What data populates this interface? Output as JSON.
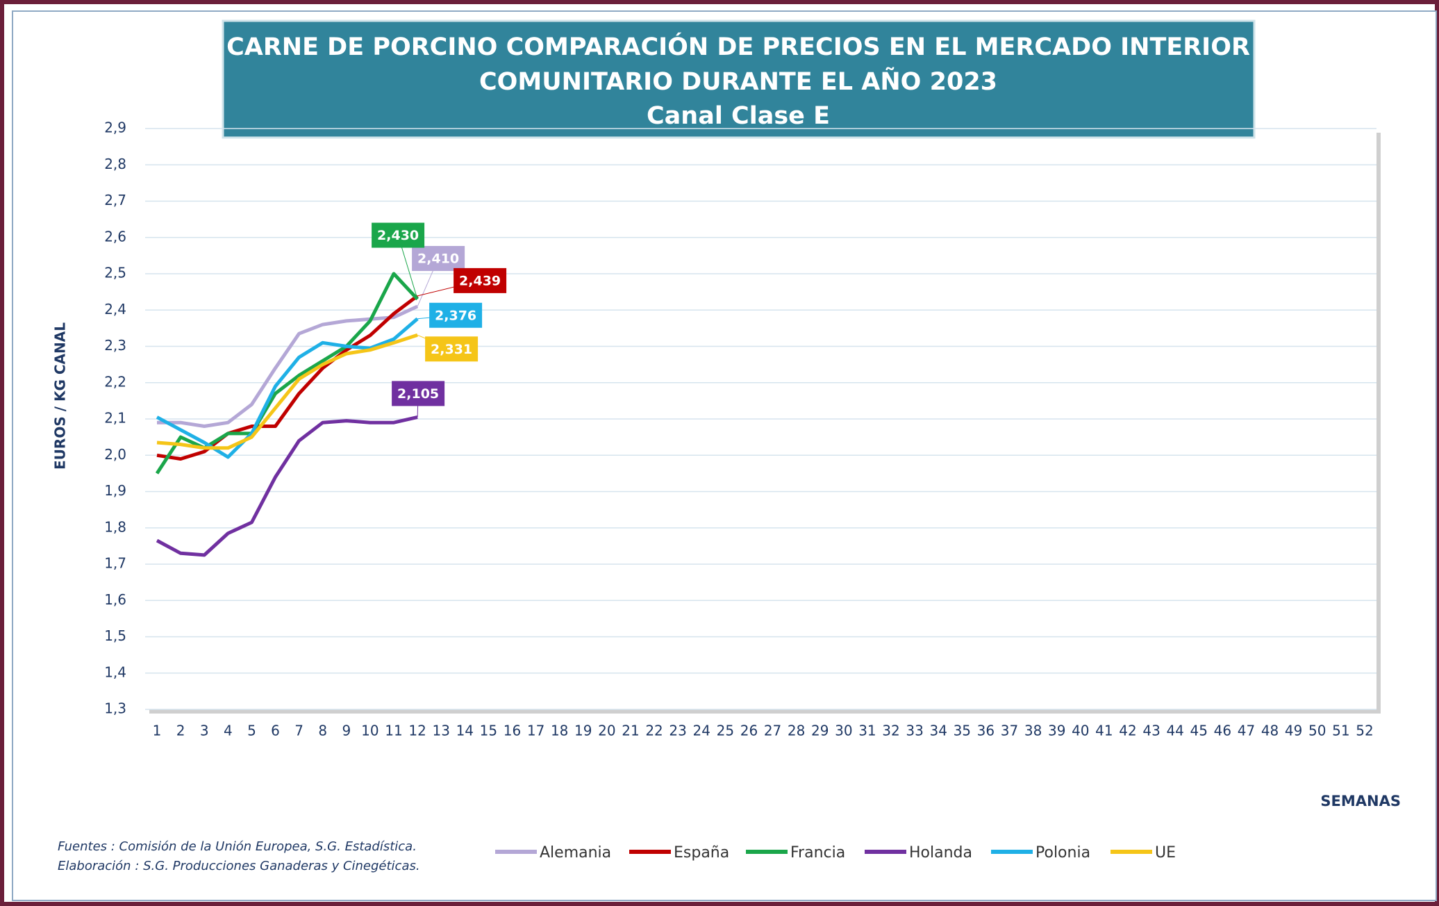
{
  "chart_data": {
    "type": "line",
    "title": [
      "CARNE DE PORCINO COMPARACIÓN  DE PRECIOS EN EL MERCADO INTERIOR",
      "COMUNITARIO DURANTE  EL AÑO 2023",
      "Canal Clase E"
    ],
    "y_label": "EUROS / KG CANAL",
    "x_label": "SEMANAS",
    "source": [
      "Fuentes : Comisión de la Unión Europea, S.G. Estadística.",
      "Elaboración : S.G. Producciones Ganaderas y Cinegéticas."
    ],
    "categories": [
      "1",
      "2",
      "3",
      "4",
      "5",
      "6",
      "7",
      "8",
      "9",
      "10",
      "11",
      "12",
      "13",
      "14",
      "15",
      "16",
      "17",
      "18",
      "19",
      "20",
      "21",
      "22",
      "23",
      "24",
      "25",
      "26",
      "27",
      "28",
      "29",
      "30",
      "31",
      "32",
      "33",
      "34",
      "35",
      "36",
      "37",
      "38",
      "39",
      "40",
      "41",
      "42",
      "43",
      "44",
      "45",
      "46",
      "47",
      "48",
      "49",
      "50",
      "51",
      "52"
    ],
    "ylim": [
      1.3,
      2.9
    ],
    "yticks": [
      {
        "value": 1.3,
        "label": "1,3"
      },
      {
        "value": 1.4,
        "label": "1,4"
      },
      {
        "value": 1.5,
        "label": "1,5"
      },
      {
        "value": 1.6,
        "label": "1,6"
      },
      {
        "value": 1.7,
        "label": "1,7"
      },
      {
        "value": 1.8,
        "label": "1,8"
      },
      {
        "value": 1.9,
        "label": "1,9"
      },
      {
        "value": 2.0,
        "label": "2,0"
      },
      {
        "value": 2.1,
        "label": "2,1"
      },
      {
        "value": 2.2,
        "label": "2,2"
      },
      {
        "value": 2.3,
        "label": "2,3"
      },
      {
        "value": 2.4,
        "label": "2,4"
      },
      {
        "value": 2.5,
        "label": "2,5"
      },
      {
        "value": 2.6,
        "label": "2,6"
      },
      {
        "value": 2.7,
        "label": "2,7"
      },
      {
        "value": 2.8,
        "label": "2,8"
      },
      {
        "value": 2.9,
        "label": "2,9"
      }
    ],
    "grid": true,
    "legend": "bottom",
    "series": [
      {
        "name": "Alemania",
        "color": "#b4a7d6",
        "values": [
          2.09,
          2.09,
          2.08,
          2.09,
          2.14,
          2.24,
          2.335,
          2.36,
          2.37,
          2.375,
          2.38,
          2.41,
          null,
          null,
          null,
          null,
          null,
          null,
          null,
          null,
          null,
          null,
          null,
          null,
          null,
          null,
          null,
          null,
          null,
          null,
          null,
          null,
          null,
          null,
          null,
          null,
          null,
          null,
          null,
          null,
          null,
          null,
          null,
          null,
          null,
          null,
          null,
          null,
          null,
          null,
          null,
          null
        ],
        "value_labels": [
          null,
          null,
          null,
          null,
          null,
          null,
          null,
          null,
          null,
          null,
          null,
          "2,410",
          null,
          null,
          null,
          null,
          null,
          null,
          null,
          null,
          null,
          null,
          null,
          null,
          null,
          null,
          null,
          null,
          null,
          null,
          null,
          null,
          null,
          null,
          null,
          null,
          null,
          null,
          null,
          null,
          null,
          null,
          null,
          null,
          null,
          null,
          null,
          null,
          null,
          null,
          null,
          null
        ]
      },
      {
        "name": "España",
        "color": "#c00000",
        "values": [
          2.0,
          1.99,
          2.01,
          2.06,
          2.08,
          2.08,
          2.17,
          2.24,
          2.29,
          2.33,
          2.39,
          2.439,
          null,
          null,
          null,
          null,
          null,
          null,
          null,
          null,
          null,
          null,
          null,
          null,
          null,
          null,
          null,
          null,
          null,
          null,
          null,
          null,
          null,
          null,
          null,
          null,
          null,
          null,
          null,
          null,
          null,
          null,
          null,
          null,
          null,
          null,
          null,
          null,
          null,
          null,
          null,
          null
        ],
        "value_labels": [
          null,
          null,
          null,
          null,
          null,
          null,
          null,
          null,
          null,
          null,
          null,
          "2,439",
          null,
          null,
          null,
          null,
          null,
          null,
          null,
          null,
          null,
          null,
          null,
          null,
          null,
          null,
          null,
          null,
          null,
          null,
          null,
          null,
          null,
          null,
          null,
          null,
          null,
          null,
          null,
          null,
          null,
          null,
          null,
          null,
          null,
          null,
          null,
          null,
          null,
          null,
          null,
          null
        ]
      },
      {
        "name": "Francia",
        "color": "#1aa64a",
        "values": [
          1.95,
          2.05,
          2.02,
          2.06,
          2.06,
          2.17,
          2.22,
          2.26,
          2.3,
          2.37,
          2.5,
          2.43,
          null,
          null,
          null,
          null,
          null,
          null,
          null,
          null,
          null,
          null,
          null,
          null,
          null,
          null,
          null,
          null,
          null,
          null,
          null,
          null,
          null,
          null,
          null,
          null,
          null,
          null,
          null,
          null,
          null,
          null,
          null,
          null,
          null,
          null,
          null,
          null,
          null,
          null,
          null,
          null
        ],
        "value_labels": [
          null,
          null,
          null,
          null,
          null,
          null,
          null,
          null,
          null,
          null,
          null,
          "2,430",
          null,
          null,
          null,
          null,
          null,
          null,
          null,
          null,
          null,
          null,
          null,
          null,
          null,
          null,
          null,
          null,
          null,
          null,
          null,
          null,
          null,
          null,
          null,
          null,
          null,
          null,
          null,
          null,
          null,
          null,
          null,
          null,
          null,
          null,
          null,
          null,
          null,
          null,
          null,
          null
        ]
      },
      {
        "name": "Holanda",
        "color": "#7030a0",
        "values": [
          1.765,
          1.73,
          1.725,
          1.785,
          1.815,
          1.94,
          2.04,
          2.09,
          2.095,
          2.09,
          2.09,
          2.105,
          null,
          null,
          null,
          null,
          null,
          null,
          null,
          null,
          null,
          null,
          null,
          null,
          null,
          null,
          null,
          null,
          null,
          null,
          null,
          null,
          null,
          null,
          null,
          null,
          null,
          null,
          null,
          null,
          null,
          null,
          null,
          null,
          null,
          null,
          null,
          null,
          null,
          null,
          null,
          null
        ],
        "value_labels": [
          null,
          null,
          null,
          null,
          null,
          null,
          null,
          null,
          null,
          null,
          null,
          "2,105",
          null,
          null,
          null,
          null,
          null,
          null,
          null,
          null,
          null,
          null,
          null,
          null,
          null,
          null,
          null,
          null,
          null,
          null,
          null,
          null,
          null,
          null,
          null,
          null,
          null,
          null,
          null,
          null,
          null,
          null,
          null,
          null,
          null,
          null,
          null,
          null,
          null,
          null,
          null,
          null
        ]
      },
      {
        "name": "Polonia",
        "color": "#1fb0e6",
        "values": [
          2.105,
          2.07,
          2.035,
          1.995,
          2.06,
          2.19,
          2.27,
          2.31,
          2.3,
          2.295,
          2.32,
          2.376,
          null,
          null,
          null,
          null,
          null,
          null,
          null,
          null,
          null,
          null,
          null,
          null,
          null,
          null,
          null,
          null,
          null,
          null,
          null,
          null,
          null,
          null,
          null,
          null,
          null,
          null,
          null,
          null,
          null,
          null,
          null,
          null,
          null,
          null,
          null,
          null,
          null,
          null,
          null,
          null
        ],
        "value_labels": [
          null,
          null,
          null,
          null,
          null,
          null,
          null,
          null,
          null,
          null,
          null,
          "2,376",
          null,
          null,
          null,
          null,
          null,
          null,
          null,
          null,
          null,
          null,
          null,
          null,
          null,
          null,
          null,
          null,
          null,
          null,
          null,
          null,
          null,
          null,
          null,
          null,
          null,
          null,
          null,
          null,
          null,
          null,
          null,
          null,
          null,
          null,
          null,
          null,
          null,
          null,
          null,
          null
        ]
      },
      {
        "name": "UE",
        "color": "#f5c518",
        "values": [
          2.035,
          2.03,
          2.02,
          2.02,
          2.05,
          2.13,
          2.21,
          2.25,
          2.28,
          2.29,
          2.31,
          2.331,
          null,
          null,
          null,
          null,
          null,
          null,
          null,
          null,
          null,
          null,
          null,
          null,
          null,
          null,
          null,
          null,
          null,
          null,
          null,
          null,
          null,
          null,
          null,
          null,
          null,
          null,
          null,
          null,
          null,
          null,
          null,
          null,
          null,
          null,
          null,
          null,
          null,
          null,
          null,
          null
        ],
        "value_labels": [
          null,
          null,
          null,
          null,
          null,
          null,
          null,
          null,
          null,
          null,
          null,
          "2,331",
          null,
          null,
          null,
          null,
          null,
          null,
          null,
          null,
          null,
          null,
          null,
          null,
          null,
          null,
          null,
          null,
          null,
          null,
          null,
          null,
          null,
          null,
          null,
          null,
          null,
          null,
          null,
          null,
          null,
          null,
          null,
          null,
          null,
          null,
          null,
          null,
          null,
          null,
          null,
          null
        ]
      }
    ]
  }
}
